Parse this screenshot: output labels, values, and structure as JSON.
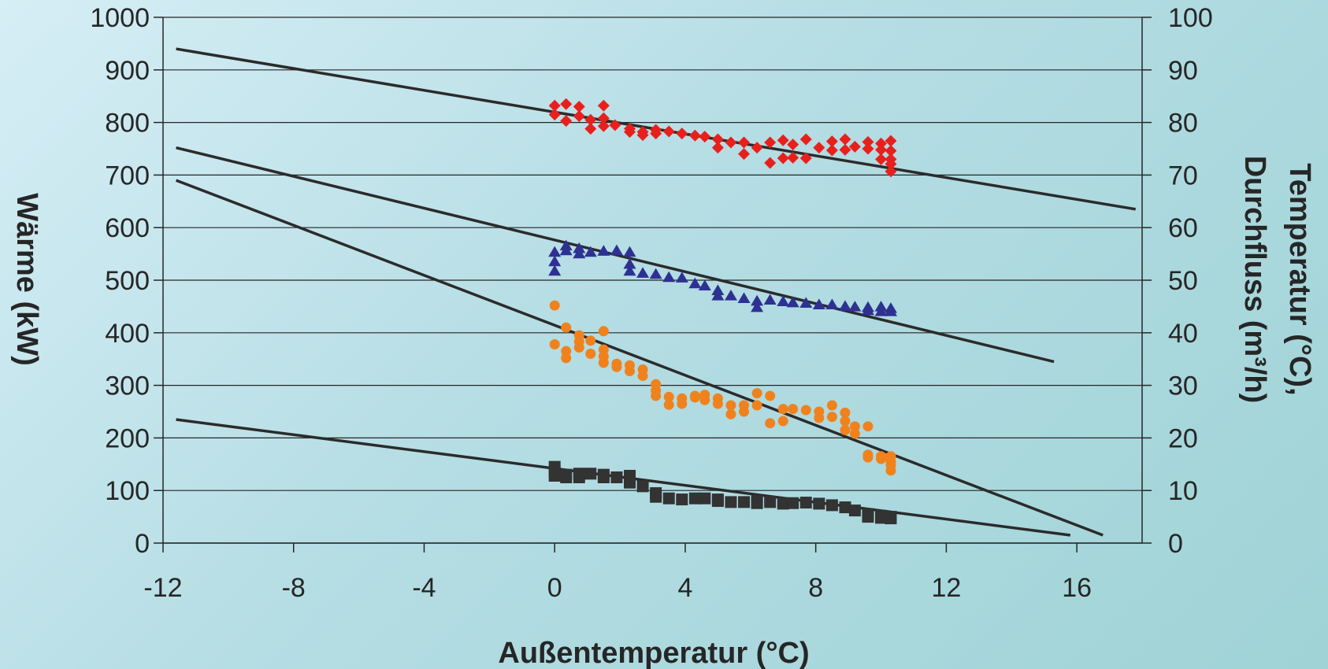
{
  "chart_data": {
    "type": "scatter",
    "xlabel": "Außentemperatur (°C)",
    "ylabel_left": "Wärme (kW)",
    "ylabel_right_line1": "Temperatur (°C),",
    "ylabel_right_line2": "Durchfluss (m³/h)",
    "xlim": [
      -12,
      18
    ],
    "ylim_left": [
      0,
      1000
    ],
    "ylim_right": [
      0,
      100
    ],
    "x_ticks": [
      -12,
      -8,
      -4,
      0,
      4,
      8,
      12,
      16
    ],
    "x_tick_labels": [
      "-12",
      "-8",
      "-4",
      "0",
      "4",
      "8",
      "12",
      "16"
    ],
    "y_left_ticks": [
      0,
      100,
      200,
      300,
      400,
      500,
      600,
      700,
      800,
      900,
      1000
    ],
    "y_left_tick_labels": [
      "0",
      "100",
      "200",
      "300",
      "400",
      "500",
      "600",
      "700",
      "800",
      "900",
      "1000"
    ],
    "y_right_ticks": [
      0,
      10,
      20,
      30,
      40,
      50,
      60,
      70,
      80,
      90,
      100
    ],
    "y_right_tick_labels": [
      "0",
      "10",
      "20",
      "30",
      "40",
      "50",
      "60",
      "70",
      "80",
      "90",
      "100"
    ],
    "grid": true,
    "legend": "none",
    "series": [
      {
        "marker": "diamond",
        "color": "#e8201c",
        "axis": "right",
        "points": [
          [
            0,
            83.2
          ],
          [
            0,
            81.5
          ],
          [
            0.35,
            83.5
          ],
          [
            0.35,
            80.3
          ],
          [
            0.75,
            83
          ],
          [
            0.75,
            81.2
          ],
          [
            1.1,
            80.5
          ],
          [
            1.1,
            78.8
          ],
          [
            1.5,
            83.2
          ],
          [
            1.5,
            80.8
          ],
          [
            1.5,
            79.3
          ],
          [
            1.85,
            79.5
          ],
          [
            2.3,
            78.8
          ],
          [
            2.3,
            78.2
          ],
          [
            2.7,
            78.2
          ],
          [
            2.7,
            77.6
          ],
          [
            3.1,
            78.6
          ],
          [
            3.1,
            77.9
          ],
          [
            3.5,
            78.3
          ],
          [
            3.9,
            77.9
          ],
          [
            4.3,
            77.5
          ],
          [
            4.6,
            77.3
          ],
          [
            5.0,
            76.8
          ],
          [
            5.0,
            75.2
          ],
          [
            5.4,
            76.2
          ],
          [
            5.8,
            76.2
          ],
          [
            5.8,
            74.0
          ],
          [
            6.2,
            75.2
          ],
          [
            6.6,
            76.2
          ],
          [
            6.6,
            72.3
          ],
          [
            7.0,
            76.6
          ],
          [
            7.0,
            73.2
          ],
          [
            7.3,
            75.8
          ],
          [
            7.3,
            73.3
          ],
          [
            7.7,
            76.8
          ],
          [
            7.7,
            73.2
          ],
          [
            8.1,
            75.2
          ],
          [
            8.5,
            76.4
          ],
          [
            8.5,
            74.7
          ],
          [
            8.9,
            76.8
          ],
          [
            8.9,
            74.8
          ],
          [
            9.2,
            75.4
          ],
          [
            9.6,
            76.3
          ],
          [
            9.6,
            75.0
          ],
          [
            10.0,
            76.0
          ],
          [
            10.0,
            74.8
          ],
          [
            10.0,
            73.0
          ],
          [
            10.3,
            76.5
          ],
          [
            10.3,
            74.6
          ],
          [
            10.3,
            73.0
          ],
          [
            10.3,
            72.1
          ],
          [
            10.3,
            70.7
          ]
        ]
      },
      {
        "marker": "triangle",
        "color": "#2e3192",
        "axis": "right",
        "points": [
          [
            0,
            55.3
          ],
          [
            0,
            53.5
          ],
          [
            0,
            51.7
          ],
          [
            0.35,
            56.5
          ],
          [
            0.35,
            55.6
          ],
          [
            0.75,
            56.0
          ],
          [
            0.75,
            55.0
          ],
          [
            1.1,
            55.3
          ],
          [
            1.5,
            55.5
          ],
          [
            1.9,
            55.6
          ],
          [
            2.3,
            55.3
          ],
          [
            2.3,
            53.0
          ],
          [
            2.3,
            51.7
          ],
          [
            2.7,
            51.3
          ],
          [
            3.1,
            51.1
          ],
          [
            3.5,
            50.5
          ],
          [
            3.9,
            50.4
          ],
          [
            4.3,
            49.3
          ],
          [
            4.6,
            48.9
          ],
          [
            5.0,
            48.0
          ],
          [
            5.0,
            47.0
          ],
          [
            5.4,
            47.0
          ],
          [
            5.8,
            46.5
          ],
          [
            6.2,
            46.0
          ],
          [
            6.2,
            44.8
          ],
          [
            6.6,
            46.2
          ],
          [
            7.0,
            45.9
          ],
          [
            7.3,
            45.7
          ],
          [
            7.7,
            45.6
          ],
          [
            8.1,
            45.3
          ],
          [
            8.5,
            45.3
          ],
          [
            8.9,
            45.0
          ],
          [
            9.2,
            44.9
          ],
          [
            9.6,
            44.8
          ],
          [
            9.6,
            44.2
          ],
          [
            10.0,
            44.9
          ],
          [
            10.0,
            44.0
          ],
          [
            10.3,
            44.6
          ],
          [
            10.3,
            44.0
          ]
        ]
      },
      {
        "marker": "circle",
        "color": "#f0821e",
        "axis": "left",
        "points": [
          [
            0,
            452
          ],
          [
            0,
            378
          ],
          [
            0.35,
            410
          ],
          [
            0.35,
            365
          ],
          [
            0.35,
            352
          ],
          [
            0.75,
            395
          ],
          [
            0.75,
            383
          ],
          [
            0.75,
            372
          ],
          [
            1.1,
            385
          ],
          [
            1.1,
            360
          ],
          [
            1.5,
            403
          ],
          [
            1.5,
            368
          ],
          [
            1.5,
            355
          ],
          [
            1.5,
            343
          ],
          [
            1.9,
            341
          ],
          [
            1.9,
            335
          ],
          [
            2.3,
            338
          ],
          [
            2.3,
            327
          ],
          [
            2.7,
            330
          ],
          [
            2.7,
            318
          ],
          [
            3.1,
            302
          ],
          [
            3.1,
            290
          ],
          [
            3.1,
            280
          ],
          [
            3.5,
            278
          ],
          [
            3.5,
            263
          ],
          [
            3.9,
            275
          ],
          [
            3.9,
            265
          ],
          [
            4.3,
            280
          ],
          [
            4.3,
            277
          ],
          [
            4.6,
            282
          ],
          [
            4.6,
            272
          ],
          [
            5.0,
            275
          ],
          [
            5.0,
            265
          ],
          [
            5.4,
            262
          ],
          [
            5.4,
            245
          ],
          [
            5.8,
            262
          ],
          [
            5.8,
            250
          ],
          [
            6.2,
            285
          ],
          [
            6.2,
            262
          ],
          [
            6.6,
            280
          ],
          [
            6.6,
            228
          ],
          [
            7.0,
            255
          ],
          [
            7.0,
            232
          ],
          [
            7.3,
            255
          ],
          [
            7.7,
            253
          ],
          [
            8.1,
            250
          ],
          [
            8.1,
            238
          ],
          [
            8.5,
            262
          ],
          [
            8.5,
            240
          ],
          [
            8.9,
            248
          ],
          [
            8.9,
            232
          ],
          [
            8.9,
            215
          ],
          [
            9.2,
            222
          ],
          [
            9.2,
            208
          ],
          [
            9.6,
            222
          ],
          [
            9.6,
            168
          ],
          [
            9.6,
            163
          ],
          [
            10.0,
            165
          ],
          [
            10.0,
            160
          ],
          [
            10.3,
            165
          ],
          [
            10.3,
            155
          ],
          [
            10.3,
            148
          ],
          [
            10.3,
            138
          ]
        ]
      },
      {
        "marker": "square",
        "color": "#333333",
        "axis": "left",
        "points": [
          [
            0,
            145
          ],
          [
            0,
            135
          ],
          [
            0,
            128
          ],
          [
            0.35,
            130
          ],
          [
            0.35,
            125
          ],
          [
            0.75,
            132
          ],
          [
            0.75,
            125
          ],
          [
            1.1,
            132
          ],
          [
            1.5,
            130
          ],
          [
            1.5,
            125
          ],
          [
            1.9,
            125
          ],
          [
            2.3,
            128
          ],
          [
            2.3,
            115
          ],
          [
            2.7,
            108
          ],
          [
            3.1,
            95
          ],
          [
            3.1,
            88
          ],
          [
            3.5,
            85
          ],
          [
            3.9,
            83
          ],
          [
            4.3,
            85
          ],
          [
            4.6,
            85
          ],
          [
            5.0,
            83
          ],
          [
            5.0,
            80
          ],
          [
            5.4,
            78
          ],
          [
            5.8,
            78
          ],
          [
            6.2,
            80
          ],
          [
            6.2,
            76
          ],
          [
            6.6,
            78
          ],
          [
            7.0,
            75
          ],
          [
            7.3,
            76
          ],
          [
            7.7,
            77
          ],
          [
            8.1,
            75
          ],
          [
            8.5,
            72
          ],
          [
            8.9,
            68
          ],
          [
            9.2,
            62
          ],
          [
            9.6,
            55
          ],
          [
            9.6,
            50
          ],
          [
            10.0,
            52
          ],
          [
            10.0,
            48
          ],
          [
            10.3,
            50
          ],
          [
            10.3,
            47
          ]
        ]
      }
    ],
    "trendlines": [
      {
        "color": "#2b2b2b",
        "axis": "right",
        "from": [
          -11.6,
          94.0
        ],
        "to": [
          17.8,
          63.5
        ]
      },
      {
        "color": "#2b2b2b",
        "axis": "right",
        "from": [
          -11.6,
          75.2
        ],
        "to": [
          15.3,
          34.5
        ]
      },
      {
        "color": "#2b2b2b",
        "axis": "left",
        "from": [
          -11.6,
          690
        ],
        "to": [
          16.8,
          15
        ]
      },
      {
        "color": "#2b2b2b",
        "axis": "left",
        "from": [
          -11.6,
          235
        ],
        "to": [
          15.8,
          15
        ]
      }
    ],
    "colors": {
      "grid": "#262626",
      "axis": "#262626",
      "text": "#262626"
    }
  }
}
